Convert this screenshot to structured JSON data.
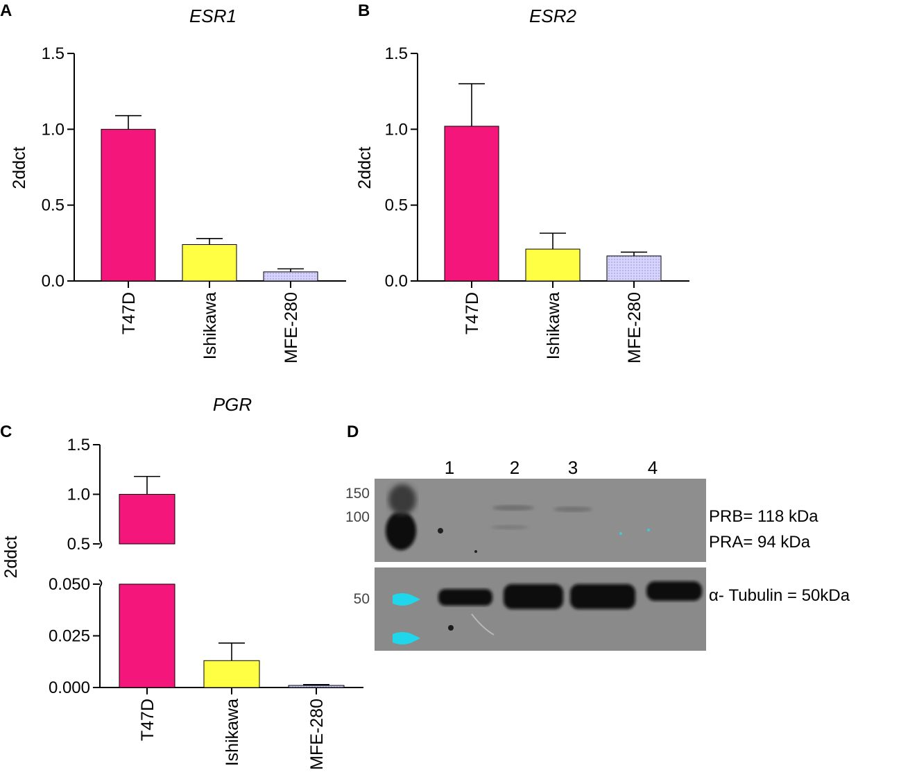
{
  "chart_data": [
    {
      "panel": "A",
      "type": "bar",
      "title": "ESR1",
      "ylabel": "2ddct",
      "categories": [
        "T47D",
        "Ishikawa",
        "MFE-280"
      ],
      "values": [
        1.0,
        0.24,
        0.06
      ],
      "errors": [
        0.09,
        0.04,
        0.02
      ],
      "ylim": [
        0,
        1.5
      ],
      "yticks": [
        "0.0",
        "0.5",
        "1.0",
        "1.5"
      ],
      "colors": [
        "#f5167c",
        "#ffff44",
        "#c9c8f6"
      ]
    },
    {
      "panel": "B",
      "type": "bar",
      "title": "ESR2",
      "ylabel": "2ddct",
      "categories": [
        "T47D",
        "Ishikawa",
        "MFE-280"
      ],
      "values": [
        1.02,
        0.21,
        0.165
      ],
      "errors": [
        0.28,
        0.105,
        0.025
      ],
      "ylim": [
        0,
        1.5
      ],
      "yticks": [
        "0.0",
        "0.5",
        "1.0",
        "1.5"
      ],
      "colors": [
        "#f5167c",
        "#ffff44",
        "#c9c8f6"
      ]
    },
    {
      "panel": "C",
      "type": "bar",
      "title": "PGR",
      "ylabel": "2ddct",
      "categories": [
        "T47D",
        "Ishikawa",
        "MFE-280"
      ],
      "values": [
        1.0,
        0.013,
        0.001
      ],
      "errors": [
        0.18,
        0.0085,
        0.0004
      ],
      "axis_break": true,
      "ylim_lower": [
        0,
        0.05
      ],
      "ylim_upper": [
        0.5,
        1.5
      ],
      "yticks_lower": [
        "0.000",
        "0.025",
        "0.050"
      ],
      "yticks_upper": [
        "0.5",
        "1.0",
        "1.5"
      ],
      "colors": [
        "#f5167c",
        "#ffff44",
        "#c9c8f6"
      ]
    }
  ],
  "blot": {
    "panel": "D",
    "lanes": [
      "1",
      "2",
      "3",
      "4"
    ],
    "markers_top": [
      "150",
      "100"
    ],
    "marker_bottom": "50",
    "label_prb": "PRB= 118 kDa",
    "label_pra": "PRA= 94 kDa",
    "label_tubulin": "α- Tubulin = 50kDa"
  }
}
